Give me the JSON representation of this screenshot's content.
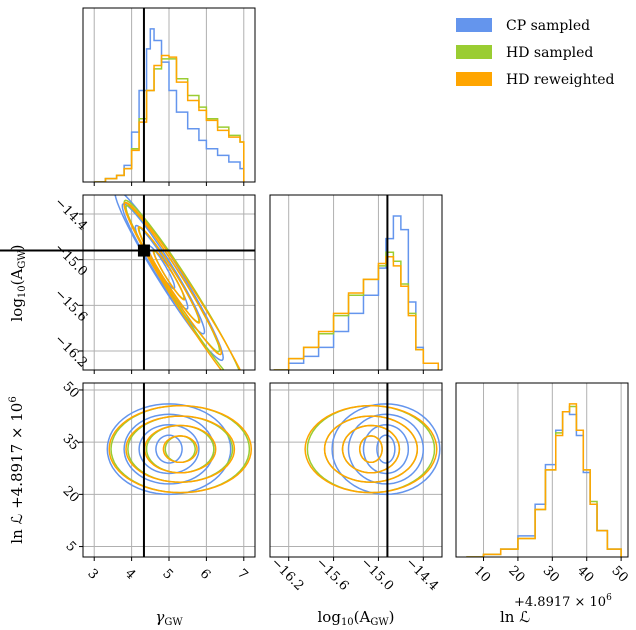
{
  "chart_data": {
    "type": "corner",
    "parameters": [
      {
        "name": "gamma_gw",
        "label": "γ",
        "label_sub": "GW",
        "range": [
          2.7,
          7.3
        ],
        "ticks": [
          3,
          4,
          5,
          6,
          7
        ],
        "truth": 4.33
      },
      {
        "name": "log10_A_gw",
        "label": "log",
        "label_sub": "10",
        "label_tail": "(A",
        "label_tail_sub": "GW",
        "label_end": ")",
        "range": [
          -16.45,
          -14.15
        ],
        "ticks": [
          -16.2,
          -15.6,
          -15.0,
          -14.4
        ],
        "tick_labels": [
          "−16.2",
          "−15.6",
          "−15.0",
          "−14.4"
        ],
        "truth": -14.88
      },
      {
        "name": "lnL",
        "label": "ln ℒ",
        "offset_text": "+4.8917 × 10",
        "offset_exp": "6",
        "range": [
          2,
          52
        ],
        "ticks": [
          5,
          20,
          35,
          50
        ],
        "ticks_diag": [
          10,
          20,
          30,
          40,
          50
        ]
      }
    ],
    "legend": [
      "CP sampled",
      "HD sampled",
      "HD reweighted"
    ],
    "colors": {
      "CP sampled": "#6495ed",
      "HD sampled": "#9acd32",
      "HD reweighted": "#ffa500"
    },
    "marker": {
      "x": 4.33,
      "y": -14.88
    },
    "marginals": {
      "gamma_gw": {
        "CP sampled": [
          [
            3.0,
            0
          ],
          [
            3.3,
            2
          ],
          [
            3.6,
            4
          ],
          [
            3.8,
            10
          ],
          [
            4.0,
            30
          ],
          [
            4.2,
            55
          ],
          [
            4.4,
            80
          ],
          [
            4.5,
            92
          ],
          [
            4.6,
            85
          ],
          [
            4.8,
            72
          ],
          [
            5.0,
            55
          ],
          [
            5.2,
            42
          ],
          [
            5.5,
            32
          ],
          [
            5.8,
            25
          ],
          [
            6.0,
            20
          ],
          [
            6.3,
            16
          ],
          [
            6.6,
            12
          ],
          [
            6.9,
            8
          ],
          [
            7.0,
            6
          ],
          [
            7.0,
            0
          ]
        ],
        "HD sampled": [
          [
            3.0,
            0
          ],
          [
            3.3,
            2
          ],
          [
            3.6,
            4
          ],
          [
            3.8,
            8
          ],
          [
            4.0,
            20
          ],
          [
            4.2,
            38
          ],
          [
            4.4,
            55
          ],
          [
            4.6,
            68
          ],
          [
            4.8,
            74
          ],
          [
            5.0,
            74
          ],
          [
            5.2,
            62
          ],
          [
            5.5,
            52
          ],
          [
            5.8,
            45
          ],
          [
            6.0,
            38
          ],
          [
            6.3,
            33
          ],
          [
            6.6,
            28
          ],
          [
            6.9,
            24
          ],
          [
            7.0,
            18
          ],
          [
            7.0,
            0
          ]
        ],
        "HD reweighted": [
          [
            3.0,
            0
          ],
          [
            3.3,
            2
          ],
          [
            3.6,
            4
          ],
          [
            3.8,
            8
          ],
          [
            4.0,
            19
          ],
          [
            4.2,
            36
          ],
          [
            4.4,
            55
          ],
          [
            4.6,
            70
          ],
          [
            4.8,
            76
          ],
          [
            5.0,
            75
          ],
          [
            5.2,
            60
          ],
          [
            5.5,
            49
          ],
          [
            5.8,
            43
          ],
          [
            6.0,
            37
          ],
          [
            6.3,
            31
          ],
          [
            6.6,
            27
          ],
          [
            6.9,
            24
          ],
          [
            7.0,
            18
          ],
          [
            7.0,
            0
          ]
        ]
      },
      "log10_A_gw": {
        "CP sampled": [
          [
            -16.4,
            0
          ],
          [
            -16.2,
            3
          ],
          [
            -16.0,
            6
          ],
          [
            -15.8,
            10
          ],
          [
            -15.6,
            17
          ],
          [
            -15.4,
            25
          ],
          [
            -15.2,
            33
          ],
          [
            -15.0,
            45
          ],
          [
            -14.9,
            58
          ],
          [
            -14.8,
            68
          ],
          [
            -14.7,
            62
          ],
          [
            -14.6,
            30
          ],
          [
            -14.5,
            10
          ],
          [
            -14.4,
            3
          ],
          [
            -14.2,
            0
          ]
        ],
        "HD sampled": [
          [
            -16.4,
            0
          ],
          [
            -16.2,
            5
          ],
          [
            -16.0,
            10
          ],
          [
            -15.8,
            16
          ],
          [
            -15.6,
            24
          ],
          [
            -15.4,
            33
          ],
          [
            -15.2,
            40
          ],
          [
            -15.0,
            46
          ],
          [
            -14.9,
            52
          ],
          [
            -14.8,
            48
          ],
          [
            -14.7,
            38
          ],
          [
            -14.6,
            25
          ],
          [
            -14.5,
            9
          ],
          [
            -14.4,
            3
          ],
          [
            -14.2,
            0
          ]
        ],
        "HD reweighted": [
          [
            -16.4,
            0
          ],
          [
            -16.2,
            5
          ],
          [
            -16.0,
            10
          ],
          [
            -15.8,
            17
          ],
          [
            -15.6,
            25
          ],
          [
            -15.4,
            34
          ],
          [
            -15.2,
            40
          ],
          [
            -15.0,
            47
          ],
          [
            -14.9,
            50
          ],
          [
            -14.8,
            46
          ],
          [
            -14.7,
            37
          ],
          [
            -14.6,
            24
          ],
          [
            -14.5,
            9
          ],
          [
            -14.4,
            3
          ],
          [
            -14.2,
            0
          ]
        ]
      },
      "lnL": {
        "CP sampled": [
          [
            5,
            0
          ],
          [
            10,
            1
          ],
          [
            15,
            3
          ],
          [
            20,
            8
          ],
          [
            25,
            20
          ],
          [
            28,
            35
          ],
          [
            31,
            48
          ],
          [
            33,
            55
          ],
          [
            35,
            54
          ],
          [
            37,
            46
          ],
          [
            39,
            32
          ],
          [
            41,
            20
          ],
          [
            43,
            10
          ],
          [
            46,
            3
          ],
          [
            50,
            0
          ]
        ],
        "HD sampled": [
          [
            5,
            0
          ],
          [
            10,
            1
          ],
          [
            15,
            3
          ],
          [
            20,
            7
          ],
          [
            25,
            18
          ],
          [
            28,
            33
          ],
          [
            31,
            47
          ],
          [
            33,
            55
          ],
          [
            35,
            57
          ],
          [
            37,
            48
          ],
          [
            39,
            33
          ],
          [
            41,
            21
          ],
          [
            43,
            10
          ],
          [
            46,
            3
          ],
          [
            50,
            0
          ]
        ],
        "HD reweighted": [
          [
            5,
            0
          ],
          [
            10,
            1
          ],
          [
            15,
            3
          ],
          [
            20,
            7
          ],
          [
            25,
            18
          ],
          [
            28,
            33
          ],
          [
            31,
            46
          ],
          [
            33,
            55
          ],
          [
            35,
            58
          ],
          [
            37,
            48
          ],
          [
            39,
            33
          ],
          [
            41,
            20
          ],
          [
            43,
            10
          ],
          [
            46,
            3
          ],
          [
            50,
            0
          ]
        ]
      }
    },
    "contours": {
      "gamma_gw_vs_log10_A_gw": {
        "CP sampled": {
          "center": [
            4.8,
            -15.1
          ],
          "slope": -0.75,
          "widths": [
            0.35,
            0.7,
            1.1,
            1.45
          ],
          "heights": [
            0.1,
            0.16,
            0.22,
            0.28
          ],
          "shift": [
            [
              0,
              0
            ],
            [
              0,
              0
            ],
            [
              0.05,
              -0.02
            ],
            [
              0.2,
              -0.1
            ]
          ]
        },
        "HD sampled": {
          "center": [
            5.0,
            -15.2
          ],
          "slope": -0.75,
          "widths": [
            0.4,
            0.8,
            1.25,
            1.6
          ],
          "heights": [
            0.09,
            0.15,
            0.21,
            0.27
          ],
          "shift": [
            [
              0,
              0
            ],
            [
              0,
              0
            ],
            [
              0.1,
              -0.05
            ],
            [
              0.4,
              -0.25
            ]
          ]
        },
        "HD reweighted": {
          "center": [
            5.0,
            -15.2
          ],
          "slope": -0.75,
          "widths": [
            0.42,
            0.82,
            1.3,
            1.7
          ],
          "heights": [
            0.09,
            0.15,
            0.21,
            0.27
          ],
          "shift": [
            [
              0,
              0
            ],
            [
              0,
              0
            ],
            [
              0.1,
              -0.05
            ],
            [
              0.5,
              -0.35
            ]
          ]
        }
      },
      "gamma_gw_vs_lnL": {
        "CP sampled": {
          "center": [
            5.0,
            33
          ],
          "radii": [
            [
              0.35,
              4
            ],
            [
              0.8,
              7
            ],
            [
              1.2,
              10
            ],
            [
              1.65,
              13
            ]
          ]
        },
        "HD sampled": {
          "center": [
            5.3,
            33
          ],
          "radii": [
            [
              0.4,
              3.8
            ],
            [
              0.9,
              6.8
            ],
            [
              1.4,
              9.5
            ],
            [
              1.85,
              12.5
            ]
          ]
        },
        "HD reweighted": {
          "center": [
            5.3,
            33
          ],
          "radii": [
            [
              0.45,
              3.8
            ],
            [
              0.95,
              6.8
            ],
            [
              1.45,
              9.5
            ],
            [
              1.9,
              12.5
            ]
          ]
        }
      },
      "log10_A_gw_vs_lnL": {
        "CP sampled": {
          "center": [
            -14.9,
            33
          ],
          "radii": [
            [
              0.12,
              4
            ],
            [
              0.3,
              7
            ],
            [
              0.5,
              10
            ],
            [
              0.72,
              13
            ]
          ]
        },
        "HD sampled": {
          "center": [
            -15.1,
            33
          ],
          "radii": [
            [
              0.15,
              3.8
            ],
            [
              0.38,
              6.8
            ],
            [
              0.62,
              9.5
            ],
            [
              0.85,
              12.5
            ]
          ]
        },
        "HD reweighted": {
          "center": [
            -15.1,
            33
          ],
          "radii": [
            [
              0.15,
              3.8
            ],
            [
              0.38,
              6.8
            ],
            [
              0.62,
              9.5
            ],
            [
              0.88,
              12.5
            ]
          ]
        }
      }
    }
  }
}
